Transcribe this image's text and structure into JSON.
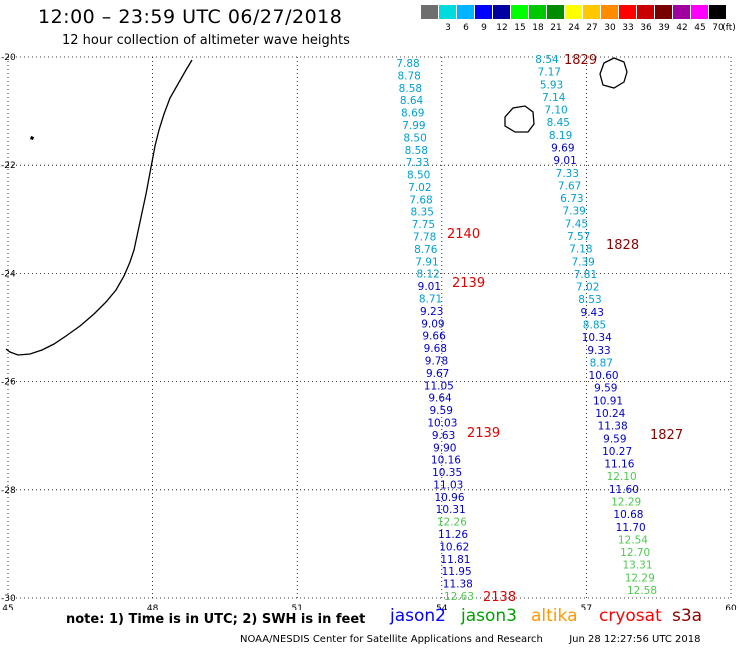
{
  "header": {
    "title": "12:00 – 23:59 UTC 06/27/2018",
    "subtitle": "12 hour collection of altimeter wave heights"
  },
  "color_scale": {
    "unit_label": "(ft)",
    "swatches": [
      {
        "label": "",
        "color": "#6e6e6e"
      },
      {
        "label": "3",
        "color": "#00dcdc"
      },
      {
        "label": "6",
        "color": "#00b4ff"
      },
      {
        "label": "9",
        "color": "#0000ff"
      },
      {
        "label": "12",
        "color": "#0000a0"
      },
      {
        "label": "15",
        "color": "#00ff00"
      },
      {
        "label": "18",
        "color": "#00c800"
      },
      {
        "label": "21",
        "color": "#008c00"
      },
      {
        "label": "24",
        "color": "#ffff00"
      },
      {
        "label": "27",
        "color": "#ffc800"
      },
      {
        "label": "30",
        "color": "#ff8c00"
      },
      {
        "label": "33",
        "color": "#ff0000"
      },
      {
        "label": "36",
        "color": "#c80000"
      },
      {
        "label": "39",
        "color": "#780000"
      },
      {
        "label": "42",
        "color": "#a000a0"
      },
      {
        "label": "45",
        "color": "#ff00ff"
      },
      {
        "label": "70",
        "color": "#000000"
      }
    ]
  },
  "map": {
    "lon_range": [
      45,
      60
    ],
    "lat_range": [
      -30,
      -20
    ],
    "lon_labels": [
      "45",
      "48",
      "51",
      "54",
      "57",
      "60"
    ],
    "lat_labels": [
      "-20",
      "-22",
      "-24",
      "-26",
      "-28",
      "-30"
    ],
    "gridlines": "dotted"
  },
  "tracks": [
    {
      "name": "track-left",
      "lon": 54.1,
      "values": [
        [
          "7.88",
          "#00a0d0"
        ],
        [
          "8.78",
          "#00a0d0"
        ],
        [
          "8.58",
          "#00a0d0"
        ],
        [
          "8.64",
          "#00a0d0"
        ],
        [
          "8.69",
          "#00a0d0"
        ],
        [
          "7.99",
          "#00a0d0"
        ],
        [
          "8.50",
          "#00a0d0"
        ],
        [
          "8.58",
          "#00a0d0"
        ],
        [
          "7.33",
          "#00a0d0"
        ],
        [
          "8.50",
          "#00a0d0"
        ],
        [
          "7.02",
          "#00a0d0"
        ],
        [
          "7.68",
          "#00a0d0"
        ],
        [
          "8.35",
          "#00a0d0"
        ],
        [
          "7.75",
          "#00a0d0"
        ],
        [
          "7.78",
          "#00a0d0"
        ],
        [
          "8.76",
          "#00a0d0"
        ],
        [
          "7.91",
          "#00a0d0"
        ],
        [
          "8.12",
          "#00a0d0"
        ],
        [
          "9.01",
          "#0000c8"
        ],
        [
          "8.71",
          "#00a0d0"
        ],
        [
          "9.23",
          "#0000c8"
        ],
        [
          "9.09",
          "#0000c8"
        ],
        [
          "9.66",
          "#0000c8"
        ],
        [
          "9.68",
          "#0000c8"
        ],
        [
          "9.78",
          "#0000c8"
        ],
        [
          "9.67",
          "#0000c8"
        ],
        [
          "11.05",
          "#0000c8"
        ],
        [
          "9.64",
          "#0000c8"
        ],
        [
          "9.59",
          "#0000c8"
        ],
        [
          "10.03",
          "#0000c8"
        ],
        [
          "9.63",
          "#0000c8"
        ],
        [
          "9.90",
          "#0000c8"
        ],
        [
          "10.16",
          "#0000c8"
        ],
        [
          "10.35",
          "#0000c8"
        ],
        [
          "11.03",
          "#0000c8"
        ],
        [
          "10.96",
          "#0000c8"
        ],
        [
          "10.31",
          "#0000c8"
        ],
        [
          "12.26",
          "#50c850"
        ],
        [
          "11.26",
          "#0000c8"
        ],
        [
          "10.62",
          "#0000c8"
        ],
        [
          "11.81",
          "#0000c8"
        ],
        [
          "11.95",
          "#0000c8"
        ],
        [
          "11.38",
          "#0000c8"
        ],
        [
          "12.63",
          "#50c850"
        ]
      ]
    },
    {
      "name": "track-right",
      "values": [
        [
          "8.54",
          "#00a0d0"
        ],
        [
          "7.17",
          "#00a0d0"
        ],
        [
          "5.93",
          "#00a0d0"
        ],
        [
          "7.14",
          "#00a0d0"
        ],
        [
          "7.10",
          "#00a0d0"
        ],
        [
          "8.45",
          "#00a0d0"
        ],
        [
          "8.19",
          "#00a0d0"
        ],
        [
          "9.69",
          "#0000c8"
        ],
        [
          "9.01",
          "#0000c8"
        ],
        [
          "7.33",
          "#00a0d0"
        ],
        [
          "7.67",
          "#00a0d0"
        ],
        [
          "6.73",
          "#00a0d0"
        ],
        [
          "7.39",
          "#00a0d0"
        ],
        [
          "7.45",
          "#00a0d0"
        ],
        [
          "7.57",
          "#00a0d0"
        ],
        [
          "7.18",
          "#00a0d0"
        ],
        [
          "7.39",
          "#00a0d0"
        ],
        [
          "7.81",
          "#00a0d0"
        ],
        [
          "7.02",
          "#00a0d0"
        ],
        [
          "8.53",
          "#00a0d0"
        ],
        [
          "9.43",
          "#0000c8"
        ],
        [
          "8.85",
          "#00a0d0"
        ],
        [
          "10.34",
          "#0000c8"
        ],
        [
          "9.33",
          "#0000c8"
        ],
        [
          "8.87",
          "#00a0d0"
        ],
        [
          "10.60",
          "#0000c8"
        ],
        [
          "9.59",
          "#0000c8"
        ],
        [
          "10.91",
          "#0000c8"
        ],
        [
          "10.24",
          "#0000c8"
        ],
        [
          "11.38",
          "#0000c8"
        ],
        [
          "9.59",
          "#0000c8"
        ],
        [
          "10.27",
          "#0000c8"
        ],
        [
          "11.16",
          "#0000c8"
        ],
        [
          "12.10",
          "#50c850"
        ],
        [
          "11.60",
          "#0000c8"
        ],
        [
          "12.29",
          "#50c850"
        ],
        [
          "10.68",
          "#0000c8"
        ],
        [
          "11.70",
          "#0000c8"
        ],
        [
          "12.54",
          "#50c850"
        ],
        [
          "12.70",
          "#50c850"
        ],
        [
          "13.31",
          "#50c850"
        ],
        [
          "12.29",
          "#50c850"
        ],
        [
          "12.58",
          "#50c850"
        ]
      ]
    }
  ],
  "time_labels": [
    {
      "text": "1829",
      "color": "#8b0000"
    },
    {
      "text": "2140",
      "color": "#e00000"
    },
    {
      "text": "1828",
      "color": "#8b0000"
    },
    {
      "text": "2139",
      "color": "#e00000"
    },
    {
      "text": "2139",
      "color": "#e00000"
    },
    {
      "text": "1827",
      "color": "#8b0000"
    },
    {
      "text": "2138",
      "color": "#e00000"
    }
  ],
  "note": "note:  1) Time is in UTC;  2) SWH is in feet",
  "legend": [
    {
      "label": "jason2",
      "color": "#0000ff"
    },
    {
      "label": "jason3",
      "color": "#00a000"
    },
    {
      "label": "altika",
      "color": "#ff9900"
    },
    {
      "label": "cryosat",
      "color": "#ff0000"
    },
    {
      "label": "s3a",
      "color": "#8b0000"
    }
  ],
  "footer": {
    "credit": "NOAA/NESDIS Center for Satellite Applications and Research",
    "timestamp": "Jun 28 12:27:56 UTC 2018"
  }
}
